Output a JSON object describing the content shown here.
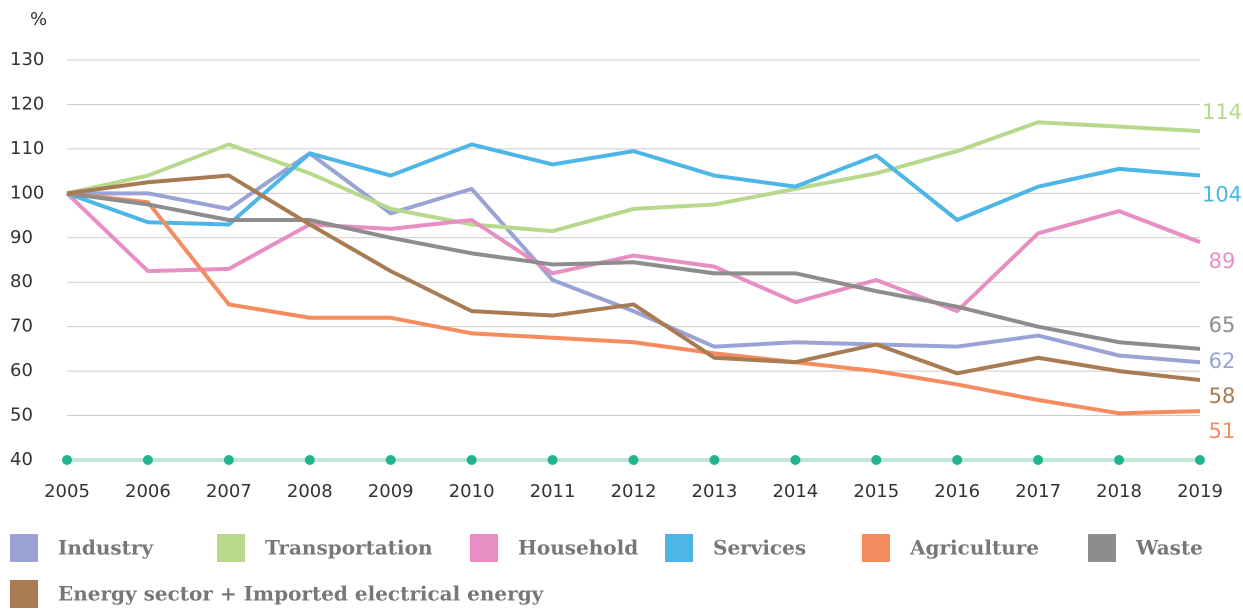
{
  "chart_data": {
    "type": "line",
    "y_label": "%",
    "x": [
      2005,
      2006,
      2007,
      2008,
      2009,
      2010,
      2011,
      2012,
      2013,
      2014,
      2015,
      2016,
      2017,
      2018,
      2019
    ],
    "xlim": [
      2005,
      2019
    ],
    "xticks": [
      2005,
      2006,
      2007,
      2008,
      2009,
      2010,
      2011,
      2012,
      2013,
      2014,
      2015,
      2016,
      2017,
      2018,
      2019
    ],
    "ylim": [
      40,
      130
    ],
    "yticks": [
      40,
      50,
      60,
      70,
      80,
      90,
      100,
      110,
      120,
      130
    ],
    "grid": true,
    "series": [
      {
        "name": "Industry",
        "color": "#9aa3d6",
        "values": [
          100,
          100,
          96.5,
          109,
          95.5,
          101,
          80.5,
          73.5,
          65.5,
          66.5,
          66,
          65.5,
          68,
          63.5,
          62
        ]
      },
      {
        "name": "Transportation",
        "color": "#b8d98c",
        "values": [
          100,
          104,
          111,
          104.5,
          96.5,
          93,
          91.5,
          96.5,
          97.5,
          101,
          104.5,
          109.5,
          116,
          115,
          114
        ]
      },
      {
        "name": "Household",
        "color": "#e78fc2",
        "values": [
          100,
          82.5,
          83,
          93,
          92,
          94,
          82,
          86,
          83.5,
          75.5,
          80.5,
          73.5,
          91,
          96,
          89
        ]
      },
      {
        "name": "Services",
        "color": "#4db6e6",
        "values": [
          100,
          93.5,
          93,
          109,
          104,
          111,
          106.5,
          109.5,
          104,
          101.5,
          108.5,
          94,
          101.5,
          105.5,
          104
        ]
      },
      {
        "name": "Agriculture",
        "color": "#f58c60",
        "values": [
          100,
          98,
          75,
          72,
          72,
          68.5,
          67.5,
          66.5,
          64,
          62,
          60,
          57,
          53.5,
          50.5,
          51
        ]
      },
      {
        "name": "Waste",
        "color": "#8d8d8d",
        "values": [
          100,
          97.5,
          94,
          94,
          90,
          86.5,
          84,
          84.5,
          82,
          82,
          78,
          74.5,
          70,
          66.5,
          65
        ]
      },
      {
        "name": "Energy sector + Imported electrical energy",
        "color": "#a97b52",
        "values": [
          100,
          102.5,
          104,
          93,
          82.5,
          73.5,
          72.5,
          75,
          63,
          62,
          66,
          59.5,
          63,
          60,
          58
        ]
      }
    ]
  }
}
